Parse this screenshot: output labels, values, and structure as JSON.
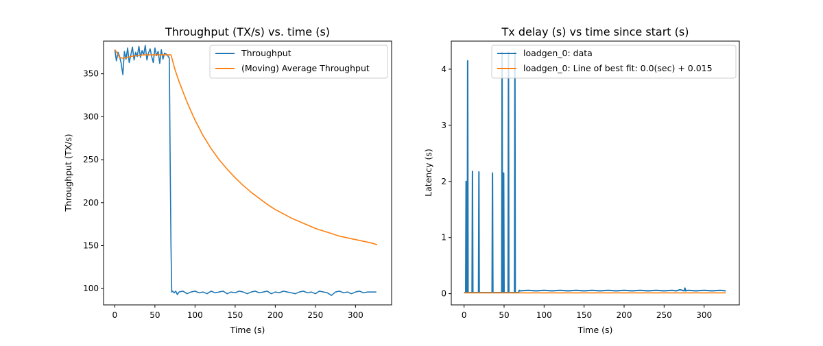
{
  "chart_data": [
    {
      "type": "line",
      "title": "Throughput (TX/s) vs. time (s)",
      "xlabel": "Time (s)",
      "ylabel": "Throughput (TX/s)",
      "xlim": [
        -14,
        345
      ],
      "ylim": [
        81,
        388
      ],
      "xticks": [
        0,
        50,
        100,
        150,
        200,
        250,
        300
      ],
      "yticks": [
        100,
        150,
        200,
        250,
        300,
        350
      ],
      "legend_position": "top-right",
      "colors": {
        "Throughput": "#1f77b4",
        "(Moving) Average Throughput": "#ff7f0e"
      },
      "series": [
        {
          "name": "Throughput",
          "color": "#1f77b4",
          "x": [
            0,
            2,
            4,
            6,
            8,
            10,
            12,
            14,
            16,
            18,
            20,
            22,
            24,
            26,
            28,
            30,
            32,
            34,
            36,
            38,
            40,
            42,
            44,
            46,
            48,
            50,
            52,
            54,
            56,
            58,
            60,
            62,
            64,
            66,
            68,
            69,
            70,
            71,
            72,
            74,
            76,
            78,
            80,
            85,
            90,
            95,
            100,
            105,
            110,
            115,
            120,
            125,
            130,
            135,
            140,
            145,
            150,
            155,
            160,
            165,
            170,
            175,
            180,
            185,
            190,
            195,
            200,
            205,
            210,
            215,
            220,
            225,
            230,
            235,
            240,
            245,
            250,
            255,
            260,
            265,
            270,
            275,
            280,
            285,
            290,
            295,
            300,
            305,
            310,
            315,
            320,
            326
          ],
          "y": [
            378,
            365,
            375,
            370,
            362,
            349,
            376,
            367,
            380,
            363,
            372,
            381,
            366,
            375,
            370,
            382,
            369,
            377,
            372,
            383,
            366,
            374,
            379,
            370,
            363,
            380,
            371,
            376,
            362,
            378,
            367,
            374,
            373,
            371,
            368,
            250,
            150,
            96,
            97,
            95,
            97,
            93,
            96,
            97,
            94,
            96,
            97,
            95,
            96,
            94,
            97,
            95,
            96,
            97,
            94,
            96,
            95,
            97,
            96,
            94,
            96,
            97,
            95,
            96,
            97,
            94,
            96,
            95,
            97,
            96,
            95,
            94,
            96,
            97,
            95,
            96,
            94,
            97,
            96,
            95,
            92,
            96,
            97,
            95,
            96,
            94,
            96,
            97,
            95,
            96,
            96,
            96
          ]
        },
        {
          "name": "(Moving) Average Throughput",
          "color": "#ff7f0e",
          "x": [
            0,
            3,
            6,
            10,
            15,
            20,
            25,
            30,
            35,
            40,
            45,
            50,
            55,
            60,
            65,
            70,
            75,
            80,
            90,
            100,
            110,
            120,
            130,
            140,
            150,
            160,
            170,
            180,
            190,
            200,
            210,
            220,
            230,
            240,
            250,
            260,
            270,
            280,
            290,
            300,
            310,
            320,
            327
          ],
          "y": [
            378,
            374,
            369,
            368,
            369,
            370,
            371,
            371,
            372,
            372,
            372,
            372,
            372,
            372,
            372,
            372,
            355,
            341,
            317,
            296,
            278,
            263,
            250,
            239,
            229,
            220,
            212,
            205,
            198,
            192,
            187,
            182,
            178,
            174,
            170,
            167,
            164,
            161,
            159,
            157,
            155,
            153,
            151
          ]
        }
      ]
    },
    {
      "type": "line",
      "title": "Tx delay (s) vs time since start (s)",
      "xlabel": "Time (s)",
      "ylabel": "Latency (s)",
      "xlim": [
        -16,
        344
      ],
      "ylim": [
        -0.2,
        4.5
      ],
      "xticks": [
        0,
        50,
        100,
        150,
        200,
        250,
        300
      ],
      "yticks": [
        0,
        1,
        2,
        3,
        4
      ],
      "legend_position": "top-right",
      "colors": {
        "loadgen_0: data": "#1f77b4",
        "loadgen_0: Line of best fit: 0.0(sec) + 0.015": "#ff7f0e"
      },
      "series": [
        {
          "name": "loadgen_0: data",
          "color": "#1f77b4",
          "x": [
            0,
            2,
            2.5,
            3,
            4,
            4.5,
            5,
            6,
            10,
            10.5,
            11,
            12,
            18,
            18.5,
            19,
            20,
            35,
            35.5,
            36,
            37,
            47,
            47.5,
            48,
            49,
            49.5,
            50,
            51,
            55,
            55.5,
            56,
            57,
            63,
            63.5,
            64,
            65,
            68,
            69,
            70,
            80,
            90,
            100,
            110,
            120,
            130,
            140,
            150,
            160,
            170,
            180,
            190,
            200,
            210,
            220,
            230,
            240,
            250,
            260,
            265,
            270,
            275,
            276,
            277,
            280,
            290,
            300,
            310,
            320,
            327
          ],
          "y": [
            0.02,
            0.02,
            2.0,
            0.02,
            0.02,
            4.15,
            0.02,
            0.02,
            0.02,
            2.18,
            0.02,
            0.02,
            0.02,
            2.17,
            0.02,
            0.02,
            0.02,
            2.15,
            0.02,
            0.02,
            0.02,
            4.3,
            0.02,
            0.02,
            2.15,
            0.02,
            0.02,
            0.02,
            4.3,
            0.02,
            0.02,
            0.02,
            4.3,
            0.02,
            0.02,
            0.02,
            0.06,
            0.05,
            0.06,
            0.05,
            0.06,
            0.05,
            0.06,
            0.05,
            0.06,
            0.05,
            0.06,
            0.05,
            0.06,
            0.05,
            0.06,
            0.05,
            0.06,
            0.05,
            0.06,
            0.05,
            0.06,
            0.05,
            0.07,
            0.05,
            0.1,
            0.05,
            0.06,
            0.05,
            0.06,
            0.05,
            0.06,
            0.05
          ]
        },
        {
          "name": "loadgen_0: Line of best fit: 0.0(sec) + 0.015",
          "color": "#ff7f0e",
          "x": [
            0,
            327
          ],
          "y": [
            0.015,
            0.015
          ]
        }
      ]
    }
  ]
}
